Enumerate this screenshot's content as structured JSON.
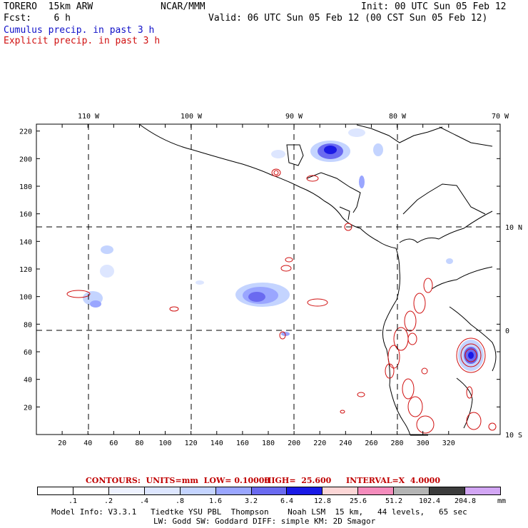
{
  "header": {
    "model": "TORERO  15km ARW",
    "org": "NCAR/MMM",
    "init": "Init: 00 UTC Sun 05 Feb 12",
    "fcst": "Fcst:    6 h",
    "valid": "Valid: 06 UTC Sun 05 Feb 12 (00 CST Sun 05 Feb 12)",
    "legend_cumulus": "Cumulus precip. in past 3 h",
    "legend_explicit": "Explicit precip. in past 3 h"
  },
  "axes": {
    "y_ticks": [
      "20",
      "40",
      "60",
      "80",
      "100",
      "120",
      "140",
      "160",
      "180",
      "200",
      "220"
    ],
    "x_ticks": [
      "20",
      "40",
      "60",
      "80",
      "100",
      "120",
      "140",
      "160",
      "180",
      "200",
      "220",
      "240",
      "260",
      "280",
      "300",
      "320"
    ],
    "lon_labels": [
      "110 W",
      "100 W",
      "90 W",
      "80 W",
      "70 W"
    ],
    "lat_labels": [
      "10 N",
      "0",
      "10 S"
    ]
  },
  "contours": {
    "label": "CONTOURS:  UNITS=mm  LOW= 0.10000",
    "high": "HIGH=  25.600",
    "interval": "INTERVAL=X  4.0000"
  },
  "colorbar": {
    "labels": [
      ".1",
      ".2",
      ".4",
      ".8",
      "1.6",
      "3.2",
      "6.4",
      "12.8",
      "25.6",
      "51.2",
      "102.4",
      "204.8"
    ],
    "unit": "mm",
    "colors": [
      "#ffffff",
      "#ffffff",
      "#eef2ff",
      "#dde6ff",
      "#c4d4ff",
      "#9aa6ff",
      "#6a6af0",
      "#1a1ae6",
      "#fcd6d6",
      "#f48cbc",
      "#b4b4b4",
      "#3c3c3c",
      "#d2a6f4"
    ]
  },
  "model_info": {
    "line1": "Model Info: V3.3.1   Tiedtke YSU PBL  Thompson    Noah LSM  15 km,   44 levels,   65 sec",
    "line2": "LW: Godd SW: Goddard DIFF: simple KM: 2D Smagor"
  }
}
